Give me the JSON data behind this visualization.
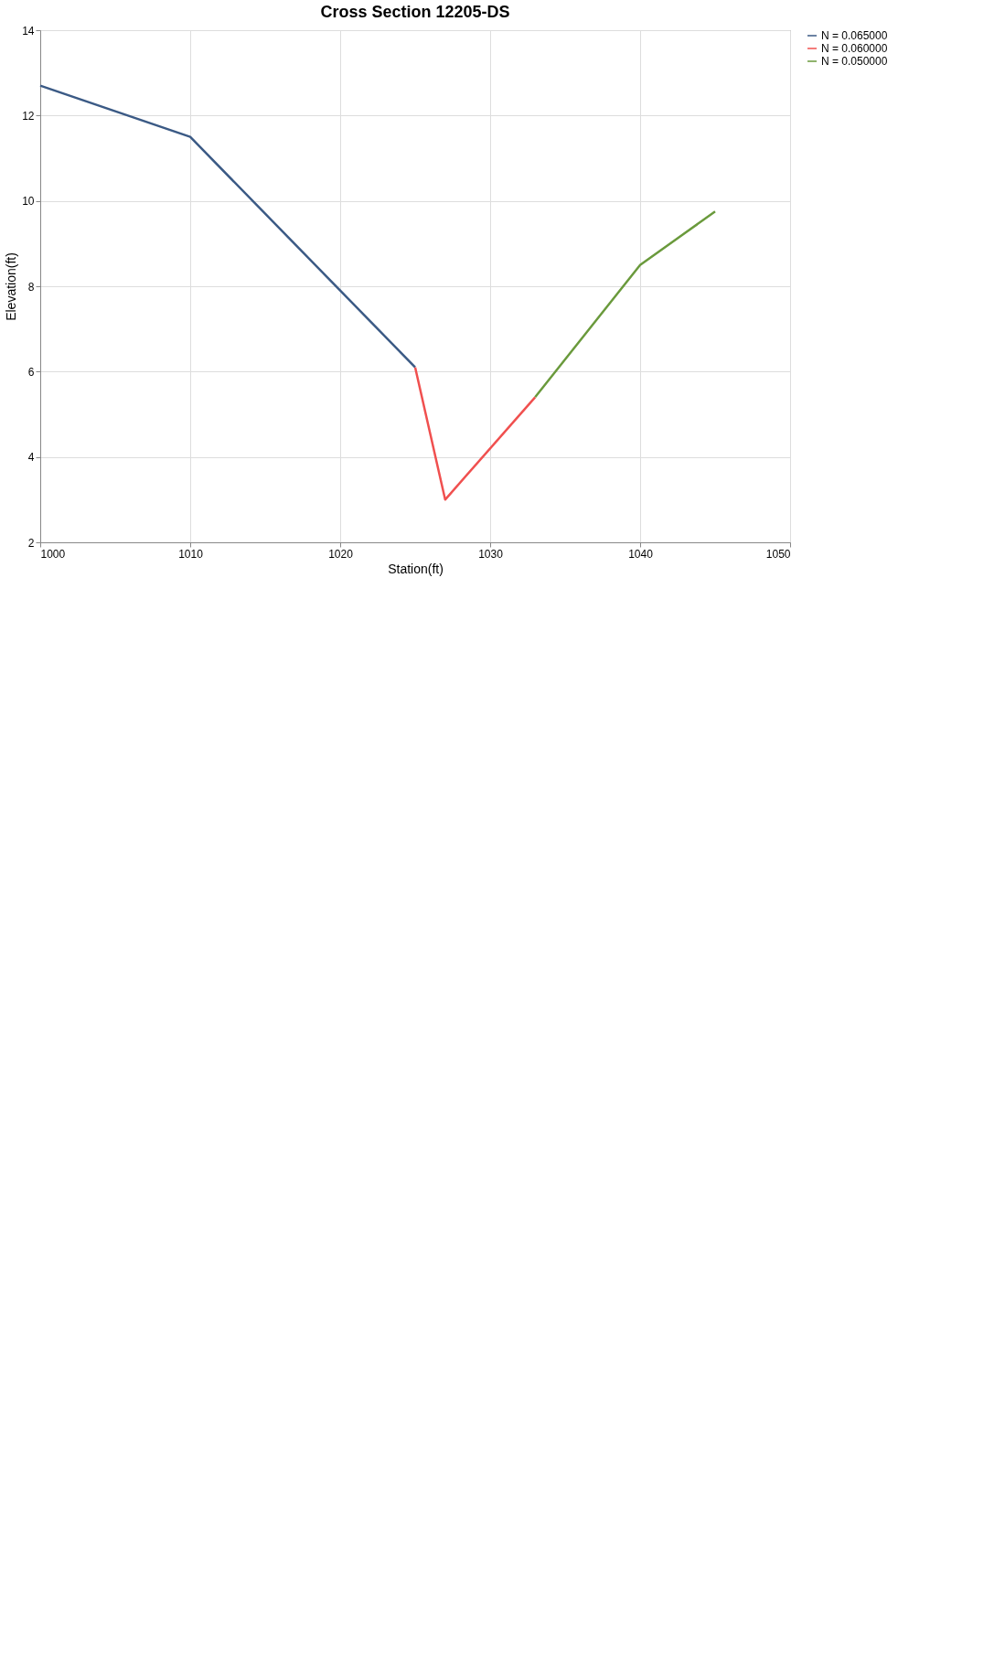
{
  "chart_data": {
    "type": "line",
    "title": "Cross Section 12205-DS",
    "xlabel": "Station(ft)",
    "ylabel": "Elevation(ft)",
    "xlim": [
      1000,
      1050
    ],
    "xticks": [
      1000,
      1010,
      1020,
      1030,
      1040,
      1050
    ],
    "ylim": [
      2,
      14
    ],
    "yticks": [
      2,
      4,
      6,
      8,
      10,
      12,
      14
    ],
    "grid": true,
    "legend": "top right",
    "marker": "none",
    "line_style": "solid",
    "series": [
      {
        "name": "N = 0.065000",
        "color": "#3b5a85",
        "x": [
          1000,
          1010,
          1025
        ],
        "values": [
          12.7,
          11.5,
          6.1
        ]
      },
      {
        "name": "N = 0.060000",
        "color": "#f0504f",
        "x": [
          1025,
          1027,
          1033
        ],
        "values": [
          6.1,
          3.0,
          5.4
        ]
      },
      {
        "name": "N = 0.050000",
        "color": "#6a9a3c",
        "x": [
          1033,
          1040,
          1045
        ],
        "values": [
          5.4,
          8.5,
          9.75
        ]
      }
    ]
  }
}
